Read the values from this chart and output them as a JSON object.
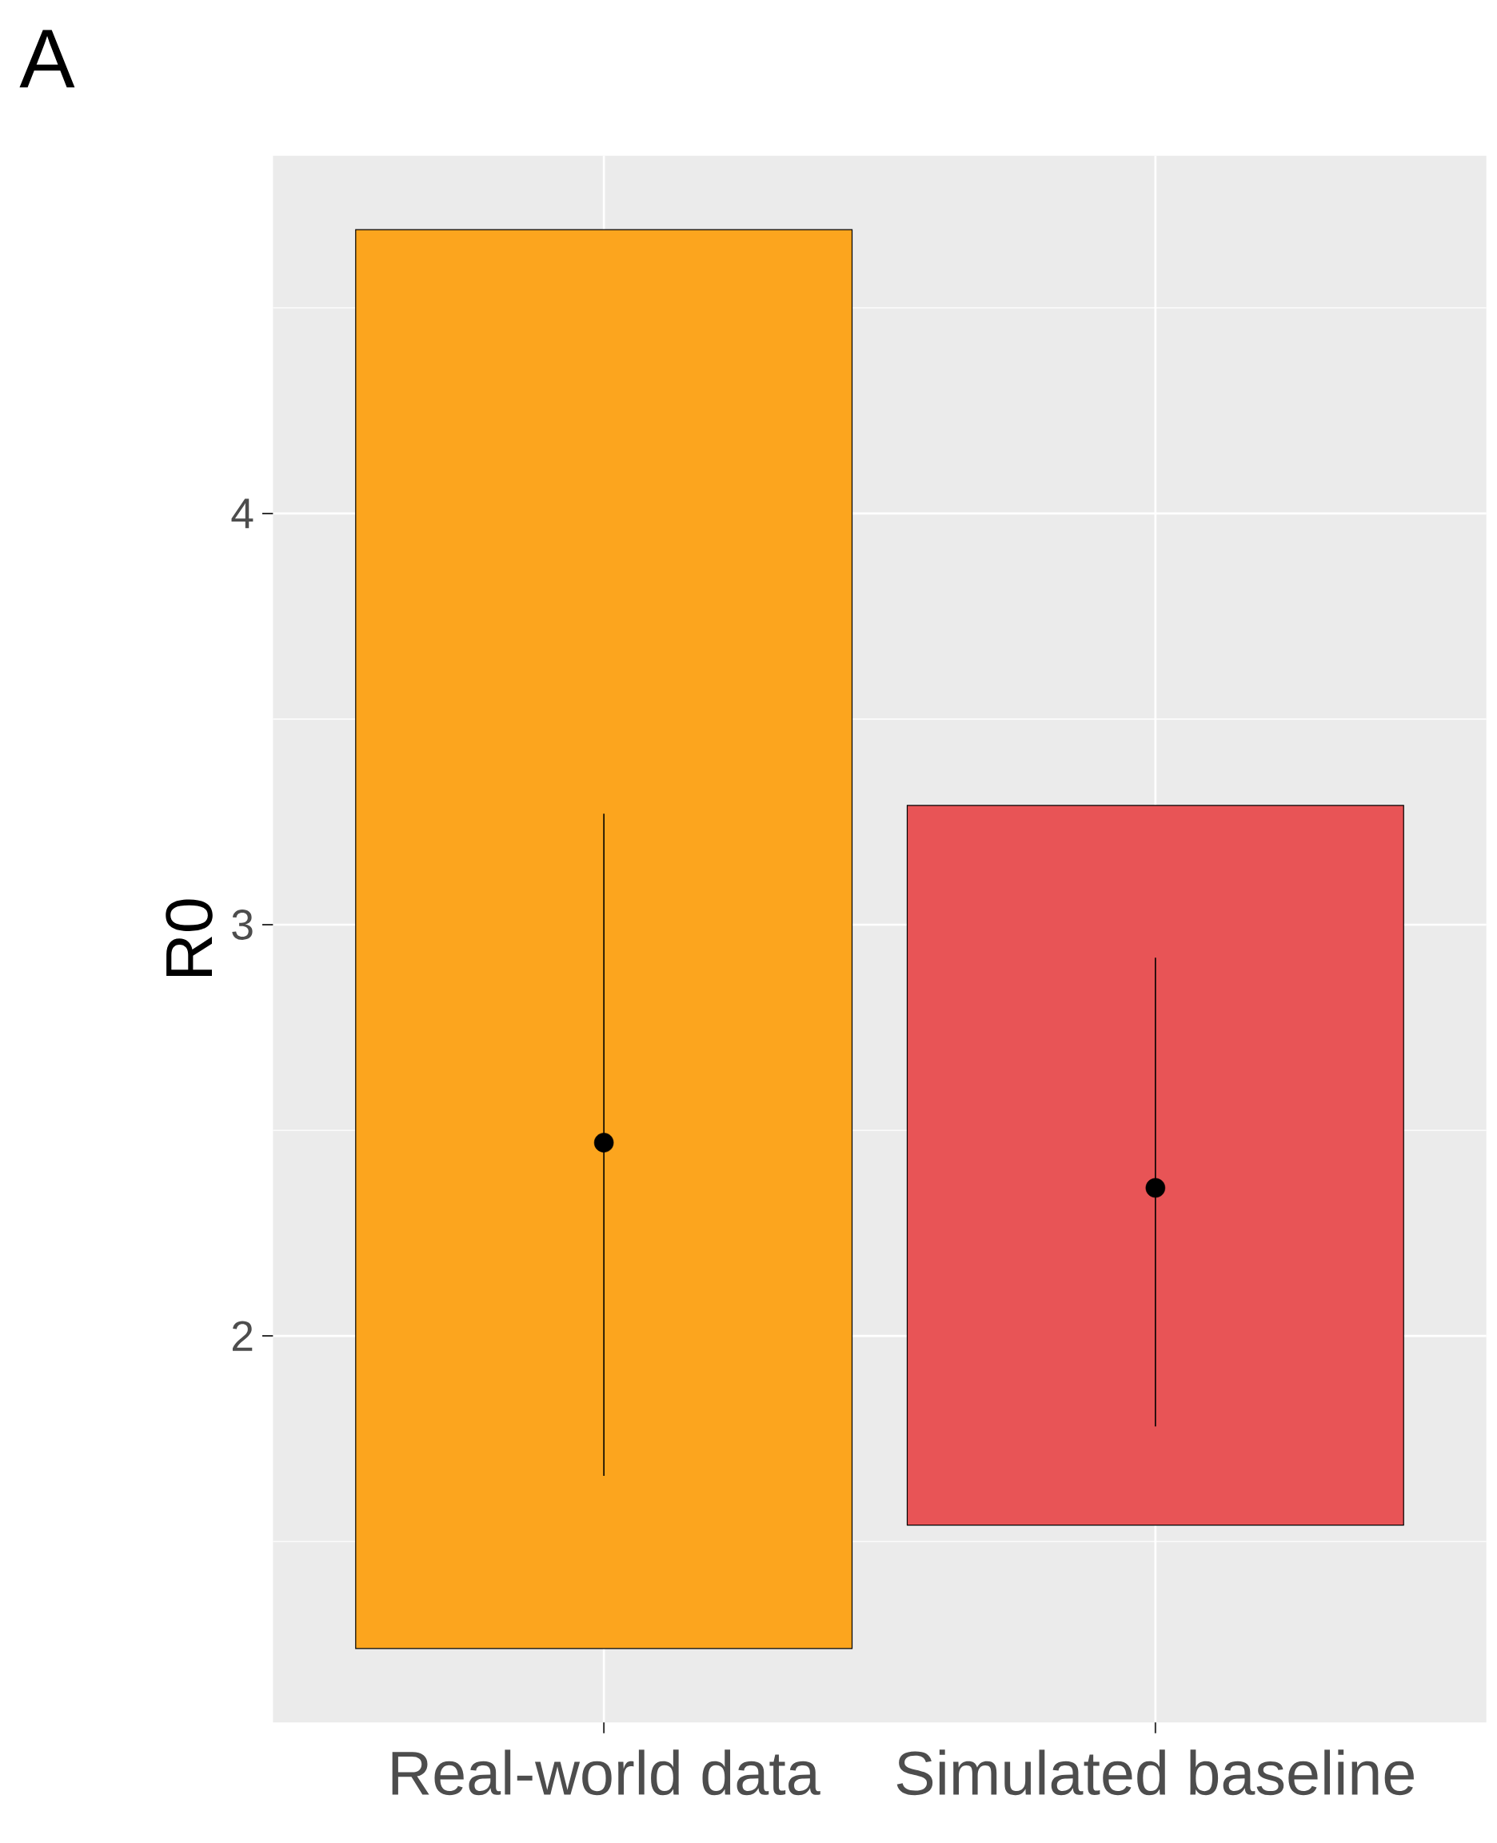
{
  "chart_data": {
    "type": "bar",
    "title": "A",
    "ylabel": "R0",
    "categories": [
      "Real-world data",
      "Simulated baseline"
    ],
    "series": [
      {
        "type": "bar",
        "colors": [
          "#fca51e",
          "#e85456"
        ],
        "base": [
          1.24,
          1.54
        ],
        "values": [
          3.45,
          1.75
        ]
      },
      {
        "type": "scatter",
        "marker": "circle",
        "color": "#000000",
        "x": [
          "Real-world data",
          "Simulated baseline"
        ],
        "values": [
          2.47,
          2.36
        ],
        "errors": [
          [
            1.66,
            3.27
          ],
          [
            1.78,
            2.92
          ]
        ]
      }
    ],
    "ylim": [
      1.06,
      4.87
    ],
    "yticks": [
      2,
      3,
      4
    ],
    "grid": true
  }
}
